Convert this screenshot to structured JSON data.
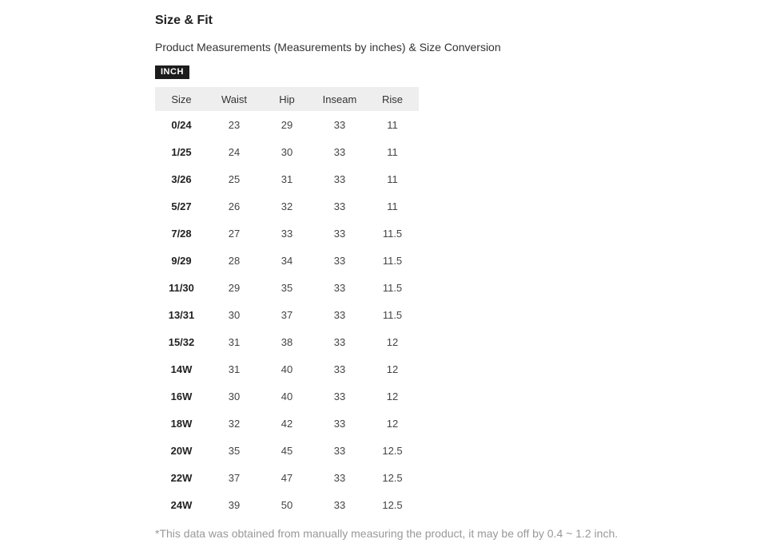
{
  "page": {
    "title": "Size & Fit",
    "subtitle": "Product Measurements (Measurements by inches) & Size Conversion",
    "unit_badge": "INCH",
    "footnote": "*This data was obtained from manually measuring the product, it may be off by 0.4 ~ 1.2 inch."
  },
  "table": {
    "columns": [
      "Size",
      "Waist",
      "Hip",
      "Inseam",
      "Rise"
    ],
    "rows": [
      [
        "0/24",
        "23",
        "29",
        "33",
        "11"
      ],
      [
        "1/25",
        "24",
        "30",
        "33",
        "11"
      ],
      [
        "3/26",
        "25",
        "31",
        "33",
        "11"
      ],
      [
        "5/27",
        "26",
        "32",
        "33",
        "11"
      ],
      [
        "7/28",
        "27",
        "33",
        "33",
        "11.5"
      ],
      [
        "9/29",
        "28",
        "34",
        "33",
        "11.5"
      ],
      [
        "11/30",
        "29",
        "35",
        "33",
        "11.5"
      ],
      [
        "13/31",
        "30",
        "37",
        "33",
        "11.5"
      ],
      [
        "15/32",
        "31",
        "38",
        "33",
        "12"
      ],
      [
        "14W",
        "31",
        "40",
        "33",
        "12"
      ],
      [
        "16W",
        "30",
        "40",
        "33",
        "12"
      ],
      [
        "18W",
        "32",
        "42",
        "33",
        "12"
      ],
      [
        "20W",
        "35",
        "45",
        "33",
        "12.5"
      ],
      [
        "22W",
        "37",
        "47",
        "33",
        "12.5"
      ],
      [
        "24W",
        "39",
        "50",
        "33",
        "12.5"
      ]
    ]
  },
  "colors": {
    "badge_bg": "#1c1c1c",
    "badge_text": "#ffffff",
    "header_bg": "#eeeeee",
    "title_text": "#222222",
    "body_text": "#444444",
    "muted_text": "#999999"
  }
}
